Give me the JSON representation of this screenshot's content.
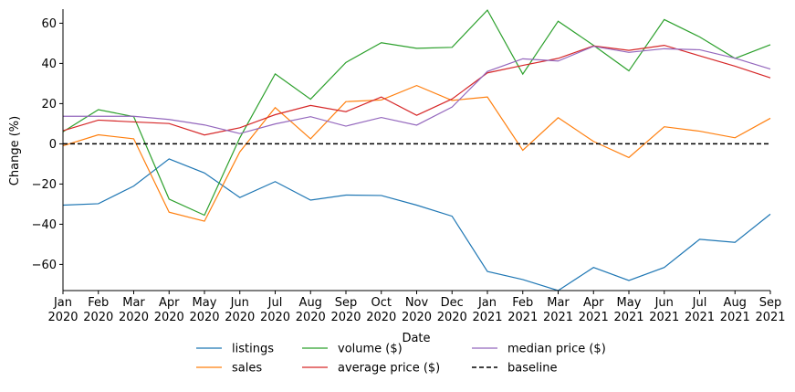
{
  "chart_data": {
    "type": "line",
    "title": "",
    "xlabel": "Date",
    "ylabel": "Change (%)",
    "ylim": [
      -73,
      67
    ],
    "y_ticks": [
      -60,
      -40,
      -20,
      0,
      20,
      40,
      60
    ],
    "grid": false,
    "legend_placement": "bottom-center",
    "x": [
      "2020-01",
      "2020-02",
      "2020-03",
      "2020-04",
      "2020-05",
      "2020-06",
      "2020-07",
      "2020-08",
      "2020-09",
      "2020-10",
      "2020-11",
      "2020-12",
      "2021-01",
      "2021-02",
      "2021-03",
      "2021-04",
      "2021-05",
      "2021-06",
      "2021-07",
      "2021-08",
      "2021-09"
    ],
    "tick_labels": [
      [
        "Jan",
        "2020"
      ],
      [
        "Feb",
        "2020"
      ],
      [
        "Mar",
        "2020"
      ],
      [
        "Apr",
        "2020"
      ],
      [
        "May",
        "2020"
      ],
      [
        "Jun",
        "2020"
      ],
      [
        "Jul",
        "2020"
      ],
      [
        "Aug",
        "2020"
      ],
      [
        "Sep",
        "2020"
      ],
      [
        "Oct",
        "2020"
      ],
      [
        "Nov",
        "2020"
      ],
      [
        "Dec",
        "2020"
      ],
      [
        "Jan",
        "2021"
      ],
      [
        "Feb",
        "2021"
      ],
      [
        "Mar",
        "2021"
      ],
      [
        "Apr",
        "2021"
      ],
      [
        "May",
        "2021"
      ],
      [
        "Jun",
        "2021"
      ],
      [
        "Jul",
        "2021"
      ],
      [
        "Aug",
        "2021"
      ],
      [
        "Sep",
        "2021"
      ]
    ],
    "series": [
      {
        "name": "listings",
        "color": "#1f77b4",
        "values": [
          -30.5,
          -29.8,
          -21,
          -7.5,
          -14.5,
          -26.7,
          -18.8,
          -28,
          -25.5,
          -25.7,
          -30.5,
          -36,
          -63.5,
          -67.5,
          -73,
          -61.5,
          -68,
          -61.5,
          -47.5,
          -49,
          -35
        ]
      },
      {
        "name": "sales",
        "color": "#ff7f0e",
        "values": [
          -1,
          4.5,
          2.5,
          -34,
          -38.5,
          -4,
          18,
          2.5,
          21,
          21.8,
          29,
          21.6,
          23.3,
          -3.2,
          13,
          1.2,
          -6.8,
          8.5,
          6.3,
          3,
          12.7
        ]
      },
      {
        "name": "volume ($)",
        "color": "#2ca02c",
        "values": [
          6,
          17,
          13.5,
          -27.5,
          -35.5,
          3,
          34.8,
          22.2,
          40.5,
          50.3,
          47.5,
          48,
          66.5,
          34.7,
          61,
          49,
          36.3,
          61.8,
          53.2,
          42.5,
          49.3
        ]
      },
      {
        "name": "average price ($)",
        "color": "#d62728",
        "values": [
          6.5,
          11.8,
          10.9,
          10.1,
          4.4,
          8,
          14.5,
          19.1,
          16,
          23.3,
          14.2,
          22.3,
          35.3,
          39,
          42.5,
          48.7,
          46.5,
          49,
          43.8,
          38.6,
          32.8
        ]
      },
      {
        "name": "median price ($)",
        "color": "#9467bd",
        "values": [
          13.7,
          13.7,
          13.7,
          12.1,
          9.4,
          5.1,
          9.9,
          13.5,
          8.8,
          13.1,
          9.3,
          18.3,
          36,
          42.3,
          41.2,
          48.5,
          45.5,
          47.3,
          46.8,
          42.6,
          37.2
        ]
      },
      {
        "name": "baseline",
        "color": "#000000",
        "dashed": true,
        "values": [
          0,
          0,
          0,
          0,
          0,
          0,
          0,
          0,
          0,
          0,
          0,
          0,
          0,
          0,
          0,
          0,
          0,
          0,
          0,
          0,
          0
        ]
      }
    ]
  }
}
